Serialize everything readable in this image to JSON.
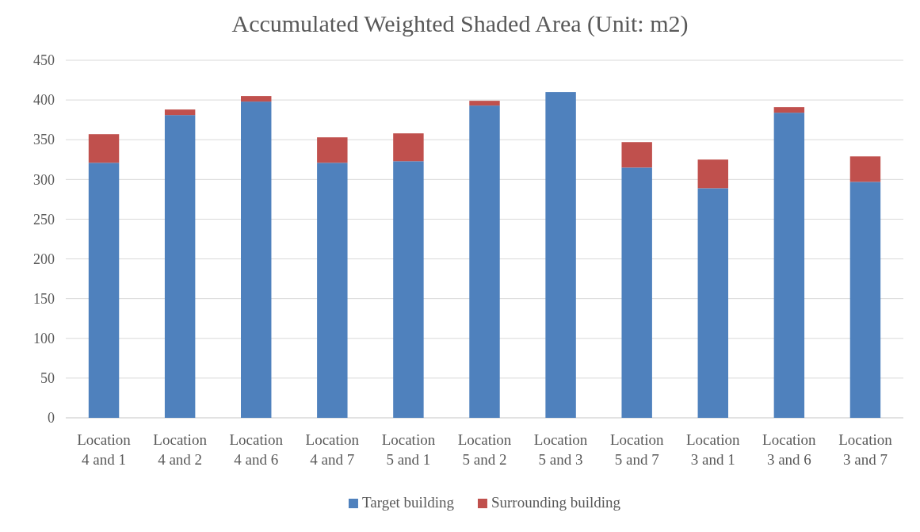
{
  "chart_data": {
    "type": "bar",
    "title": "Accumulated Weighted Shaded Area (Unit: m2)",
    "categories": [
      "Location 4 and 1",
      "Location 4 and 2",
      "Location 4 and 6",
      "Location 4 and 7",
      "Location 5 and 1",
      "Location 5 and 2",
      "Location 5 and 3",
      "Location 5 and 7",
      "Location 3 and 1",
      "Location 3 and 6",
      "Location 3 and 7"
    ],
    "series": [
      {
        "name": "Target building",
        "color": "#4f81bd",
        "values": [
          321,
          381,
          398,
          321,
          323,
          393,
          410,
          315,
          289,
          384,
          297
        ]
      },
      {
        "name": "Surrounding building",
        "color": "#c0504d",
        "values": [
          36,
          7,
          7,
          32,
          35,
          6,
          0,
          32,
          36,
          7,
          32
        ]
      }
    ],
    "stacked": true,
    "ylim": [
      0,
      450
    ],
    "yticks": [
      0,
      50,
      100,
      150,
      200,
      250,
      300,
      350,
      400,
      450
    ],
    "grid": "y",
    "legend": "bottom"
  }
}
